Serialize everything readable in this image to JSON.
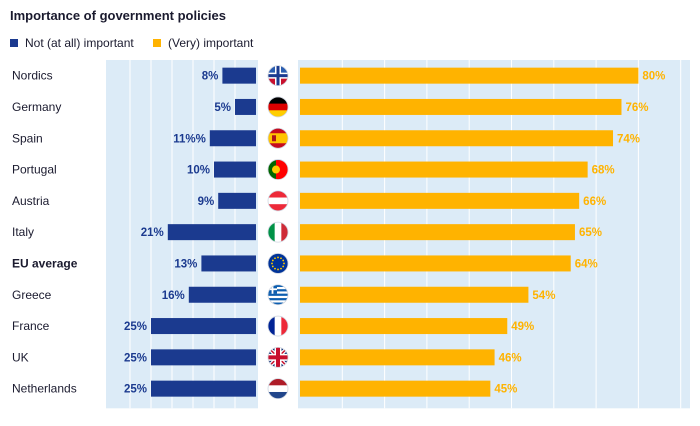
{
  "colors": {
    "not_important": "#1b3a8f",
    "important": "#ffb300",
    "panel_bg": "#dcebf7",
    "grid": "#ffffff",
    "label_text": "#1a1a2e"
  },
  "chart_data": {
    "type": "bar",
    "title": "Importance of government policies",
    "legend": [
      {
        "name": "Not (at all) important",
        "color": "#1b3a8f"
      },
      {
        "name": "(Very) important",
        "color": "#ffb300"
      }
    ],
    "categories": [
      "Nordics",
      "Germany",
      "Spain",
      "Portugal",
      "Austria",
      "Italy",
      "EU average",
      "Greece",
      "France",
      "UK",
      "Netherlands"
    ],
    "highlight_category": "EU average",
    "series": [
      {
        "name": "Not (at all) important",
        "values": [
          8,
          5,
          11,
          10,
          9,
          21,
          13,
          16,
          25,
          25,
          25
        ],
        "labels": [
          "8%",
          "5%",
          "11%%",
          "10%",
          "9%",
          "21%",
          "13%",
          "16%",
          "25%",
          "25%",
          "25%"
        ]
      },
      {
        "name": "(Very) important",
        "values": [
          80,
          76,
          74,
          68,
          66,
          65,
          64,
          54,
          49,
          46,
          45
        ],
        "labels": [
          "80%",
          "76%",
          "74%",
          "68%",
          "66%",
          "65%",
          "64%",
          "54%",
          "49%",
          "46%",
          "45%"
        ]
      }
    ],
    "flags": [
      "flag-nordics-icon",
      "flag-germany-icon",
      "flag-spain-icon",
      "flag-portugal-icon",
      "flag-austria-icon",
      "flag-italy-icon",
      "flag-eu-icon",
      "flag-greece-icon",
      "flag-france-icon",
      "flag-uk-icon",
      "flag-netherlands-icon"
    ],
    "grid": true,
    "xlim_left": [
      0,
      30
    ],
    "xlim_right": [
      0,
      85
    ]
  }
}
